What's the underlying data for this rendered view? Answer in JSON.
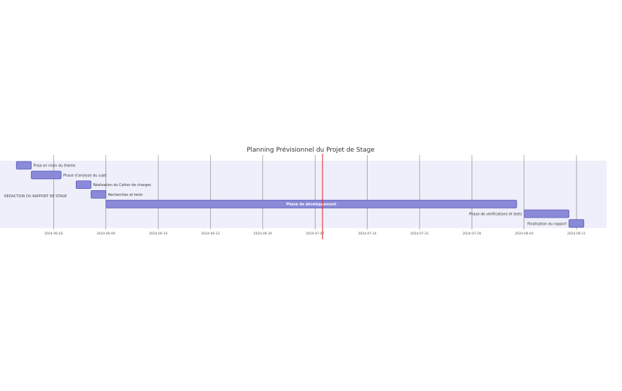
{
  "chart_data": {
    "type": "gantt",
    "title": "Planning Prévisionnel du Projet de Stage",
    "section": "REDACTION DU RAPPORT DE STAGE",
    "today": "2024-07-08",
    "x_ticks": [
      "2024-06-02",
      "2024-06-09",
      "2024-06-16",
      "2024-06-23",
      "2024-06-30",
      "2024-07-07",
      "2024-07-14",
      "2024-07-21",
      "2024-07-28",
      "2024-08-04",
      "2024-08-11"
    ],
    "xlim": [
      "2024-05-26",
      "2024-08-14"
    ],
    "tasks": [
      {
        "label": "Prise en main du thème",
        "start": "2024-05-28",
        "end": "2024-05-30"
      },
      {
        "label": "Phase d'analyse du sujet",
        "start": "2024-05-30",
        "end": "2024-06-03"
      },
      {
        "label": "Réalisation du Cahier de charges",
        "start": "2024-06-05",
        "end": "2024-06-07"
      },
      {
        "label": "Recherches et tests",
        "start": "2024-06-07",
        "end": "2024-06-09"
      },
      {
        "label": "Phase de développement",
        "start": "2024-06-09",
        "end": "2024-08-03"
      },
      {
        "label": "Phase de vérifications et tests",
        "start": "2024-08-04",
        "end": "2024-08-10"
      },
      {
        "label": "Finalisation du rapport",
        "start": "2024-08-10",
        "end": "2024-08-12"
      }
    ],
    "colors": {
      "section_band": "#efeffb",
      "bar_fill": "#8a8ad9",
      "bar_stroke": "#5656b5",
      "grid": "#7a7a7a",
      "today_line": "#dd1d1d"
    }
  }
}
